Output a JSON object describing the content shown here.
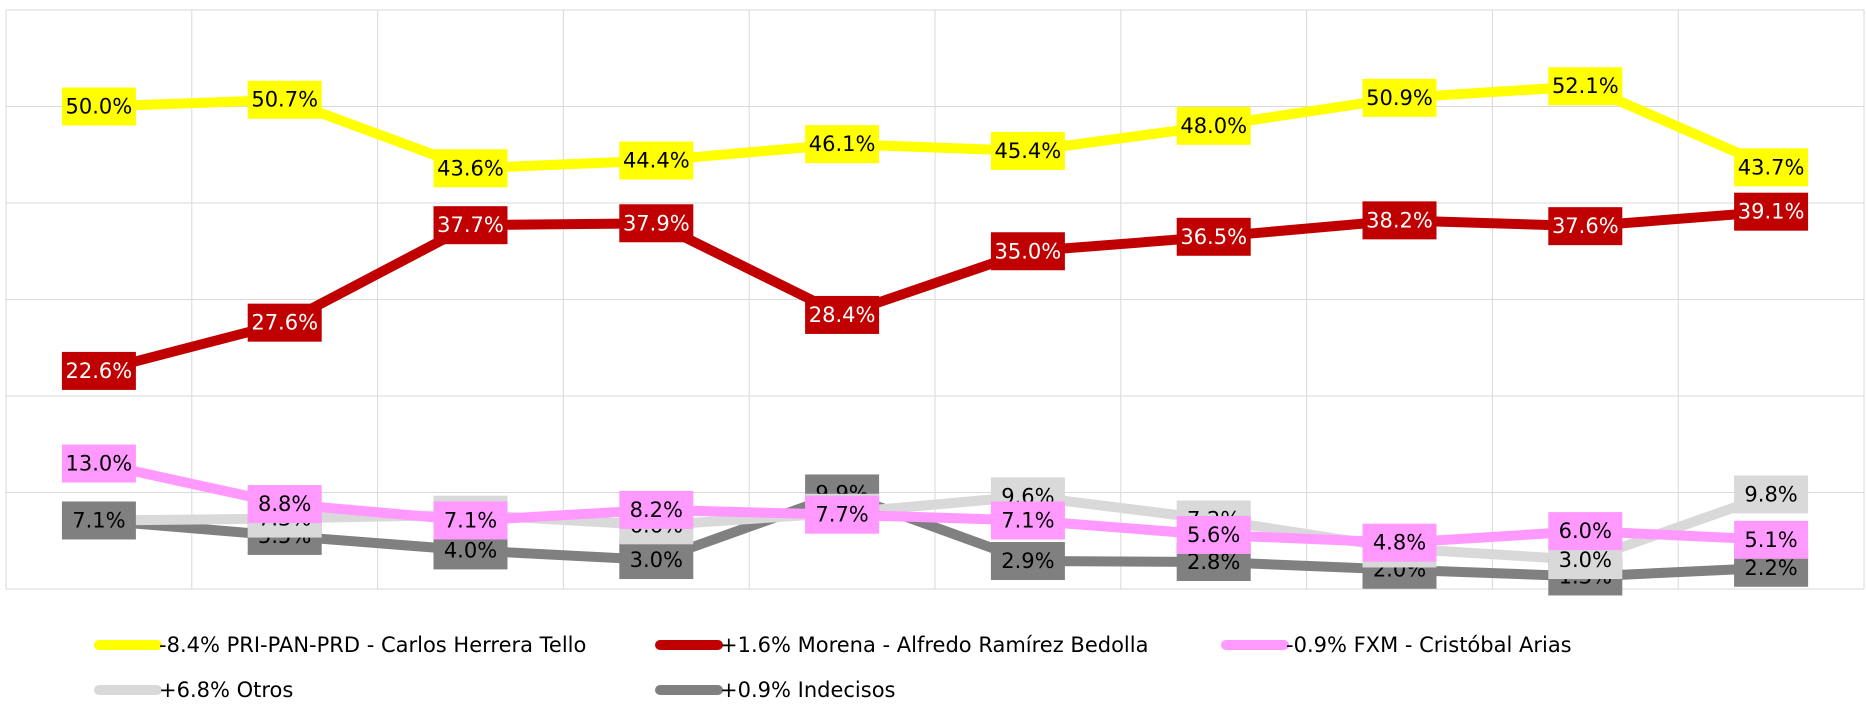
{
  "chart_data": {
    "type": "line",
    "categories": [
      null,
      null,
      null,
      null,
      null,
      null,
      null,
      null,
      null,
      null
    ],
    "ylim": [
      0,
      60
    ],
    "yticks": [
      0,
      10,
      20,
      30,
      40,
      50,
      60
    ],
    "grid": true,
    "legend": "bottom",
    "series": [
      {
        "name": "-8.4% PRI-PAN-PRD - Carlos Herrera Tello",
        "color": "#ffff00",
        "label_text": "#000000",
        "values": [
          50.0,
          50.7,
          43.6,
          44.4,
          46.1,
          45.4,
          48.0,
          50.9,
          52.1,
          43.7
        ],
        "value_labels": [
          "50.0%",
          "50.7%",
          "43.6%",
          "44.4%",
          "46.1%",
          "45.4%",
          "48.0%",
          "50.9%",
          "52.1%",
          "43.7%"
        ]
      },
      {
        "name": "+1.6% Morena - Alfredo Ramírez Bedolla",
        "color": "#c00000",
        "label_text": "#ffffff",
        "values": [
          22.6,
          27.6,
          37.7,
          37.9,
          28.4,
          35.0,
          36.5,
          38.2,
          37.6,
          39.1
        ],
        "value_labels": [
          "22.6%",
          "27.6%",
          "37.7%",
          "37.9%",
          "28.4%",
          "35.0%",
          "36.5%",
          "38.2%",
          "37.6%",
          "39.1%"
        ]
      },
      {
        "name": "-0.9% FXM - Cristóbal Arias",
        "color": "#ff99ff",
        "label_text": "#000000",
        "values": [
          13.0,
          8.8,
          7.1,
          8.2,
          7.7,
          7.1,
          5.6,
          4.8,
          6.0,
          5.1
        ],
        "value_labels": [
          "13.0%",
          "8.8%",
          "7.1%",
          "8.2%",
          "7.7%",
          "7.1%",
          "5.6%",
          "4.8%",
          "6.0%",
          "5.1%"
        ]
      },
      {
        "name": "+6.8% Otros",
        "color": "#d9d9d9",
        "label_text": "#000000",
        "values": [
          7.1,
          7.3,
          7.7,
          6.6,
          7.9,
          9.6,
          7.2,
          4.2,
          3.0,
          9.8
        ],
        "value_labels": [
          null,
          "7.3%",
          "7.7%",
          "6.6%",
          "7.9%",
          "9.6%",
          "7.2%",
          "4.2%",
          "3.0%",
          "9.8%"
        ]
      },
      {
        "name": "+0.9% Indecisos",
        "color": "#808080",
        "label_text": "#000000",
        "values": [
          7.1,
          5.5,
          4.0,
          3.0,
          9.9,
          2.9,
          2.8,
          2.0,
          1.3,
          2.2
        ],
        "value_labels": [
          "7.1%",
          "5.5%",
          "4.0%",
          "3.0%",
          "9.9%",
          "2.9%",
          "2.8%",
          "2.0%",
          "1.3%",
          "2.2%"
        ]
      }
    ]
  }
}
